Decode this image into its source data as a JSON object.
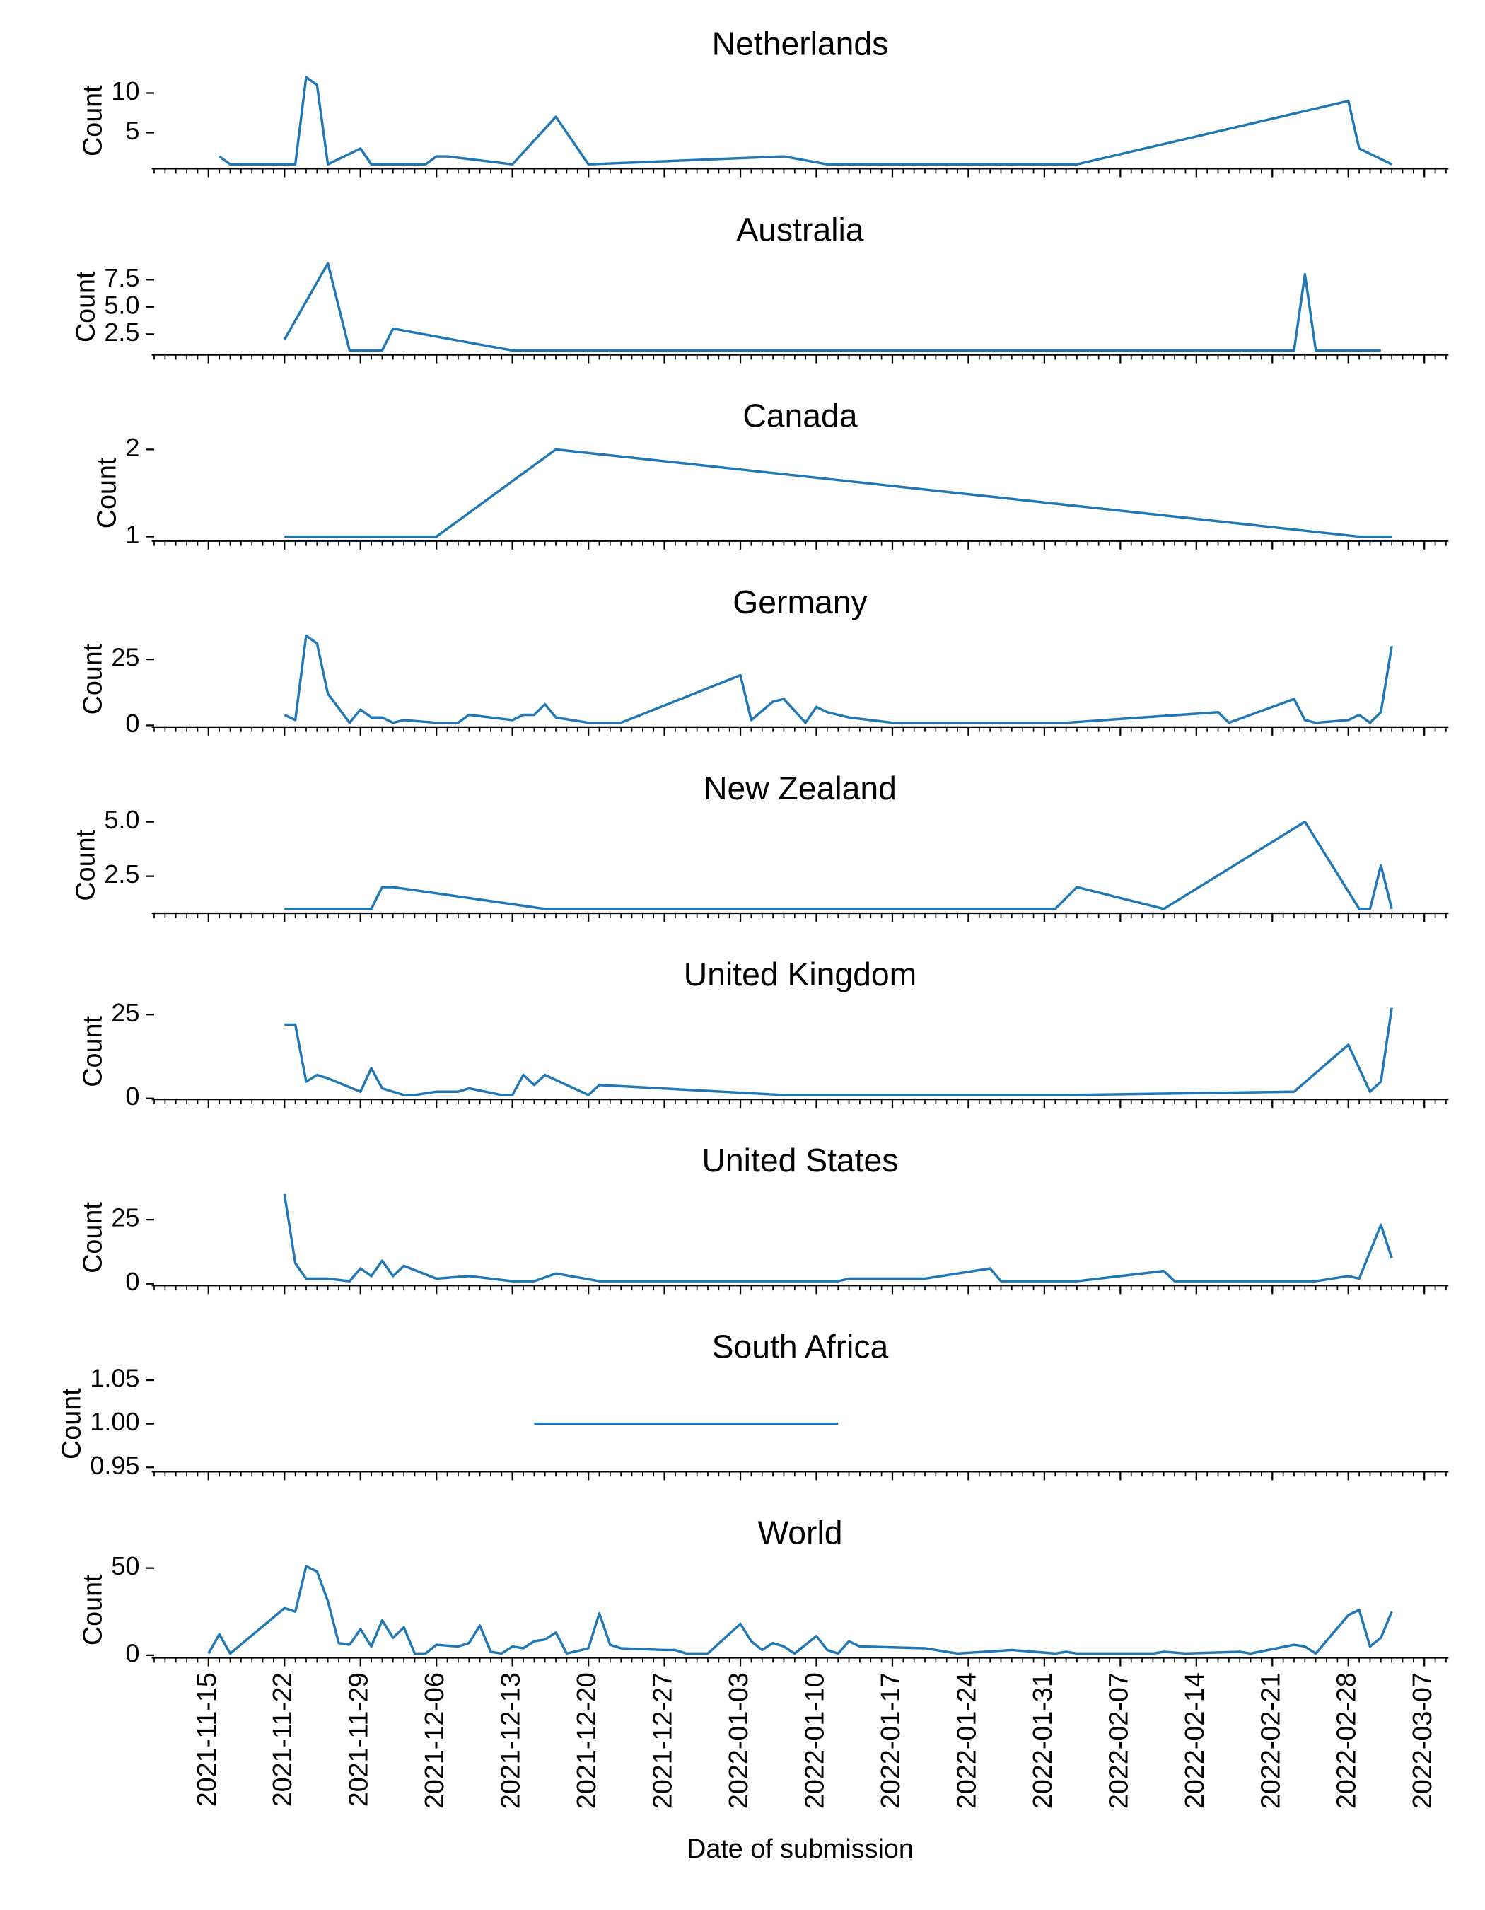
{
  "chart_data": [
    {
      "type": "line",
      "title": "Netherlands",
      "ylabel": "Count",
      "color": "#1f77b4",
      "xlim": [
        "2021-11-10",
        "2022-03-09"
      ],
      "ylim": [
        0.45,
        12.55
      ],
      "yticks": [
        5,
        10
      ],
      "x": [
        "2021-11-16",
        "2021-11-17",
        "2021-11-23",
        "2021-11-24",
        "2021-11-25",
        "2021-11-26",
        "2021-11-29",
        "2021-11-30",
        "2021-12-05",
        "2021-12-06",
        "2021-12-07",
        "2021-12-13",
        "2021-12-17",
        "2021-12-20",
        "2022-01-07",
        "2022-01-11",
        "2022-02-03",
        "2022-02-28",
        "2022-03-01",
        "2022-03-04"
      ],
      "values": [
        2,
        1,
        1,
        12,
        11,
        1,
        3,
        1,
        1,
        2,
        2,
        1,
        7,
        1,
        2,
        1,
        1,
        9,
        3,
        1
      ]
    },
    {
      "type": "line",
      "title": "Australia",
      "ylabel": "Count",
      "color": "#1f77b4",
      "xlim": [
        "2021-11-10",
        "2022-03-09"
      ],
      "ylim": [
        0.6,
        9.4
      ],
      "yticks": [
        2.5,
        {
          "value": 5,
          "label": "5.0"
        },
        7.5
      ],
      "x": [
        "2021-11-22",
        "2021-11-26",
        "2021-11-28",
        "2021-12-01",
        "2021-12-02",
        "2021-12-13",
        "2022-02-23",
        "2022-02-24",
        "2022-02-25",
        "2022-03-03"
      ],
      "values": [
        2,
        9,
        1,
        1,
        3,
        1,
        1,
        8,
        1,
        1
      ]
    },
    {
      "type": "line",
      "title": "Canada",
      "ylabel": "Count",
      "color": "#1f77b4",
      "xlim": [
        "2021-11-10",
        "2022-03-09"
      ],
      "ylim": [
        0.95,
        2.05
      ],
      "yticks": [
        1,
        2
      ],
      "x": [
        "2021-11-22",
        "2021-12-06",
        "2021-12-17",
        "2022-03-01",
        "2022-03-04"
      ],
      "values": [
        1,
        1,
        2,
        1,
        1
      ]
    },
    {
      "type": "line",
      "title": "Germany",
      "ylabel": "Count",
      "color": "#1f77b4",
      "xlim": [
        "2021-11-10",
        "2022-03-09"
      ],
      "ylim": [
        -0.65,
        35.65
      ],
      "yticks": [
        0,
        25
      ],
      "x": [
        "2021-11-22",
        "2021-11-23",
        "2021-11-24",
        "2021-11-25",
        "2021-11-26",
        "2021-11-28",
        "2021-11-29",
        "2021-11-30",
        "2021-12-01",
        "2021-12-02",
        "2021-12-03",
        "2021-12-06",
        "2021-12-08",
        "2021-12-09",
        "2021-12-13",
        "2021-12-14",
        "2021-12-15",
        "2021-12-16",
        "2021-12-17",
        "2021-12-20",
        "2021-12-23",
        "2022-01-03",
        "2022-01-04",
        "2022-01-06",
        "2022-01-07",
        "2022-01-09",
        "2022-01-10",
        "2022-01-11",
        "2022-01-13",
        "2022-01-17",
        "2022-02-02",
        "2022-02-16",
        "2022-02-17",
        "2022-02-23",
        "2022-02-24",
        "2022-02-25",
        "2022-02-28",
        "2022-03-01",
        "2022-03-02",
        "2022-03-03",
        "2022-03-04"
      ],
      "values": [
        4,
        2,
        34,
        31,
        12,
        1,
        6,
        3,
        3,
        1,
        2,
        1,
        1,
        4,
        2,
        4,
        4,
        8,
        3,
        1,
        1,
        19,
        2,
        9,
        10,
        1,
        7,
        5,
        3,
        1,
        1,
        5,
        1,
        10,
        2,
        1,
        2,
        4,
        1,
        5,
        30
      ]
    },
    {
      "type": "line",
      "title": "New Zealand",
      "ylabel": "Count",
      "color": "#1f77b4",
      "xlim": [
        "2021-11-10",
        "2022-03-09"
      ],
      "ylim": [
        0.8,
        5.2
      ],
      "yticks": [
        2.5,
        {
          "value": 5,
          "label": "5.0"
        }
      ],
      "x": [
        "2021-11-22",
        "2021-11-30",
        "2021-12-01",
        "2021-12-02",
        "2021-12-16",
        "2022-02-01",
        "2022-02-03",
        "2022-02-11",
        "2022-02-24",
        "2022-03-01",
        "2022-03-02",
        "2022-03-03",
        "2022-03-04"
      ],
      "values": [
        1,
        1,
        2,
        2,
        1,
        1,
        2,
        1,
        5,
        1,
        1,
        3,
        1
      ]
    },
    {
      "type": "line",
      "title": "United Kingdom",
      "ylabel": "Count",
      "color": "#1f77b4",
      "xlim": [
        "2021-11-10",
        "2022-03-09"
      ],
      "ylim": [
        -0.3,
        28.3
      ],
      "yticks": [
        0,
        25
      ],
      "x": [
        "2021-11-22",
        "2021-11-23",
        "2021-11-24",
        "2021-11-25",
        "2021-11-26",
        "2021-11-29",
        "2021-11-30",
        "2021-12-01",
        "2021-12-03",
        "2021-12-04",
        "2021-12-06",
        "2021-12-08",
        "2021-12-09",
        "2021-12-12",
        "2021-12-13",
        "2021-12-14",
        "2021-12-15",
        "2021-12-16",
        "2021-12-20",
        "2021-12-21",
        "2022-01-07",
        "2022-02-02",
        "2022-02-23",
        "2022-02-28",
        "2022-03-02",
        "2022-03-03",
        "2022-03-04"
      ],
      "values": [
        22,
        22,
        5,
        7,
        6,
        2,
        9,
        3,
        1,
        1,
        2,
        2,
        3,
        1,
        1,
        7,
        4,
        7,
        1,
        4,
        1,
        1,
        2,
        16,
        2,
        5,
        27
      ]
    },
    {
      "type": "line",
      "title": "United States",
      "ylabel": "Count",
      "color": "#1f77b4",
      "xlim": [
        "2021-11-10",
        "2022-03-09"
      ],
      "ylim": [
        -0.7,
        36.7
      ],
      "yticks": [
        0,
        25
      ],
      "x": [
        "2021-11-22",
        "2021-11-23",
        "2021-11-24",
        "2021-11-26",
        "2021-11-28",
        "2021-11-29",
        "2021-11-30",
        "2021-12-01",
        "2021-12-02",
        "2021-12-03",
        "2021-12-06",
        "2021-12-09",
        "2021-12-13",
        "2021-12-15",
        "2021-12-17",
        "2021-12-21",
        "2022-01-12",
        "2022-01-13",
        "2022-01-20",
        "2022-01-26",
        "2022-01-27",
        "2022-02-03",
        "2022-02-11",
        "2022-02-12",
        "2022-02-25",
        "2022-02-28",
        "2022-03-01",
        "2022-03-03",
        "2022-03-04"
      ],
      "values": [
        35,
        8,
        2,
        2,
        1,
        6,
        3,
        9,
        3,
        7,
        2,
        3,
        1,
        1,
        4,
        1,
        1,
        2,
        2,
        6,
        1,
        1,
        5,
        1,
        1,
        3,
        2,
        23,
        10
      ]
    },
    {
      "type": "line",
      "title": "South Africa",
      "ylabel": "Count",
      "color": "#1f77b4",
      "xlim": [
        "2021-11-10",
        "2022-03-09"
      ],
      "ylim": [
        0.945,
        1.055
      ],
      "yticks": [
        0.95,
        {
          "value": 1,
          "label": "1.00"
        },
        1.05
      ],
      "x": [
        "2021-12-15",
        "2022-01-12"
      ],
      "values": [
        1,
        1
      ]
    },
    {
      "type": "line",
      "title": "World",
      "ylabel": "Count",
      "xlabel": "Date of submission",
      "color": "#1f77b4",
      "xlim": [
        "2021-11-10",
        "2022-03-09"
      ],
      "ylim": [
        -1.5,
        53.5
      ],
      "yticks": [
        0,
        50
      ],
      "xticks": [
        "2021-11-15",
        "2021-11-22",
        "2021-11-29",
        "2021-12-06",
        "2021-12-13",
        "2021-12-20",
        "2021-12-27",
        "2022-01-03",
        "2022-01-10",
        "2022-01-17",
        "2022-01-24",
        "2022-01-31",
        "2022-02-07",
        "2022-02-14",
        "2022-02-21",
        "2022-02-28",
        "2022-03-07"
      ],
      "x": [
        "2021-11-15",
        "2021-11-16",
        "2021-11-17",
        "2021-11-22",
        "2021-11-23",
        "2021-11-24",
        "2021-11-25",
        "2021-11-26",
        "2021-11-27",
        "2021-11-28",
        "2021-11-29",
        "2021-11-30",
        "2021-12-01",
        "2021-12-02",
        "2021-12-03",
        "2021-12-04",
        "2021-12-05",
        "2021-12-06",
        "2021-12-08",
        "2021-12-09",
        "2021-12-10",
        "2021-12-11",
        "2021-12-12",
        "2021-12-13",
        "2021-12-14",
        "2021-12-15",
        "2021-12-16",
        "2021-12-17",
        "2021-12-18",
        "2021-12-20",
        "2021-12-21",
        "2021-12-22",
        "2021-12-23",
        "2021-12-27",
        "2021-12-28",
        "2021-12-29",
        "2021-12-31",
        "2022-01-03",
        "2022-01-04",
        "2022-01-05",
        "2022-01-06",
        "2022-01-07",
        "2022-01-08",
        "2022-01-10",
        "2022-01-11",
        "2022-01-12",
        "2022-01-13",
        "2022-01-14",
        "2022-01-20",
        "2022-01-23",
        "2022-01-28",
        "2022-02-01",
        "2022-02-02",
        "2022-02-03",
        "2022-02-10",
        "2022-02-11",
        "2022-02-13",
        "2022-02-18",
        "2022-02-19",
        "2022-02-23",
        "2022-02-24",
        "2022-02-25",
        "2022-02-28",
        "2022-03-01",
        "2022-03-02",
        "2022-03-03",
        "2022-03-04"
      ],
      "values": [
        1,
        12,
        1,
        27,
        25,
        51,
        48,
        31,
        7,
        6,
        15,
        5,
        20,
        10,
        16,
        1,
        1,
        6,
        5,
        7,
        17,
        2,
        1,
        5,
        4,
        8,
        9,
        13,
        1,
        4,
        24,
        6,
        4,
        3,
        3,
        1,
        1,
        18,
        8,
        3,
        7,
        5,
        1,
        11,
        3,
        1,
        8,
        5,
        4,
        1,
        3,
        1,
        2,
        1,
        1,
        2,
        1,
        2,
        1,
        6,
        5,
        1,
        23,
        26,
        5,
        10,
        25
      ]
    }
  ]
}
